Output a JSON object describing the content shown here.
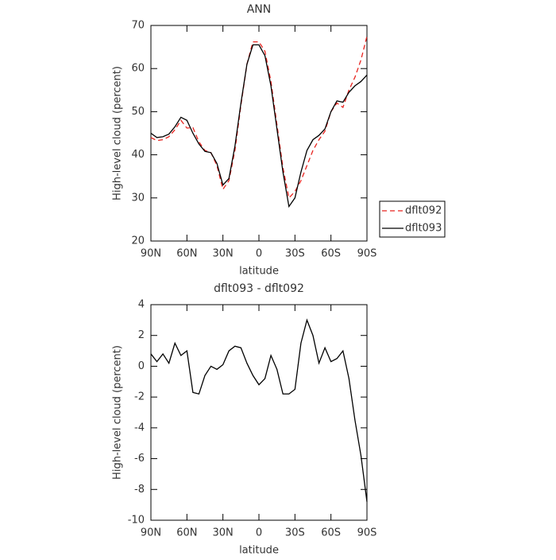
{
  "chart_data": [
    {
      "type": "line",
      "title": "ANN",
      "x_label": "latitude",
      "y_label": "High-level cloud (percent)",
      "x": [
        90,
        85,
        80,
        75,
        70,
        65,
        60,
        55,
        50,
        45,
        40,
        35,
        30,
        25,
        20,
        15,
        10,
        5,
        0,
        -5,
        -10,
        -15,
        -20,
        -25,
        -30,
        -35,
        -40,
        -45,
        -50,
        -55,
        -60,
        -65,
        -70,
        -75,
        -80,
        -85,
        -90
      ],
      "series": [
        {
          "name": "dflt092",
          "color": "#e8231e",
          "linestyle": "dashed",
          "values": [
            44,
            43.3,
            43.5,
            44.2,
            45.8,
            48,
            46.2,
            46.3,
            43,
            41,
            40.5,
            37.5,
            32,
            34,
            41,
            51.5,
            61,
            66.2,
            66.2,
            64,
            57,
            47,
            37,
            30,
            31.5,
            34,
            37.5,
            41,
            43.5,
            45.5,
            50,
            52,
            51,
            55,
            58,
            62,
            67.5
          ]
        },
        {
          "name": "dflt093",
          "color": "#000000",
          "linestyle": "solid",
          "values": [
            45,
            44,
            44.2,
            44.8,
            46.5,
            48.7,
            48,
            45,
            42.5,
            40.8,
            40.5,
            38,
            33,
            34.5,
            42,
            52,
            61,
            65.5,
            65.5,
            63,
            56,
            46,
            36,
            28,
            30,
            36,
            41,
            43.5,
            44.5,
            46,
            50,
            52.5,
            52.2,
            54.5,
            56,
            57,
            58.5
          ]
        }
      ],
      "xlim": [
        90,
        -90
      ],
      "xticks": [
        {
          "value": 90,
          "label": "90N"
        },
        {
          "value": 60,
          "label": "60N"
        },
        {
          "value": 30,
          "label": "30N"
        },
        0,
        {
          "value": -30,
          "label": "30S"
        },
        {
          "value": -60,
          "label": "60S"
        },
        {
          "value": -90,
          "label": "90S"
        }
      ],
      "ylim": [
        20,
        70
      ],
      "yticks": [
        20,
        30,
        40,
        50,
        60,
        70
      ],
      "legend": "right"
    },
    {
      "type": "line",
      "title": "dflt093 - dflt092",
      "x_label": "latitude",
      "y_label": "High-level cloud (percent)",
      "x": [
        90,
        85,
        80,
        75,
        70,
        65,
        60,
        55,
        50,
        45,
        40,
        35,
        30,
        25,
        20,
        15,
        10,
        5,
        0,
        -5,
        -10,
        -15,
        -20,
        -25,
        -30,
        -35,
        -40,
        -45,
        -50,
        -55,
        -60,
        -65,
        -70,
        -75,
        -80,
        -85,
        -90
      ],
      "series": [
        {
          "color": "#000000",
          "linestyle": "solid",
          "values": [
            0.8,
            0.3,
            0.8,
            0.2,
            1.5,
            0.7,
            1.0,
            -1.7,
            -1.8,
            -0.6,
            0,
            -0.2,
            0.1,
            1.0,
            1.3,
            1.2,
            0.2,
            -0.6,
            -1.2,
            -0.8,
            0.7,
            -0.2,
            -1.8,
            -1.8,
            -1.5,
            1.5,
            3.0,
            2.0,
            0.2,
            1.2,
            0.3,
            0.5,
            1.0,
            -0.8,
            -3.5,
            -5.8,
            -8.8
          ]
        }
      ],
      "xlim": [
        90,
        -90
      ],
      "xticks": [
        {
          "value": 90,
          "label": "90N"
        },
        {
          "value": 60,
          "label": "60N"
        },
        {
          "value": 30,
          "label": "30N"
        },
        0,
        {
          "value": -30,
          "label": "30S"
        },
        {
          "value": -60,
          "label": "60S"
        },
        {
          "value": -90,
          "label": "90S"
        }
      ],
      "ylim": [
        -10,
        4
      ],
      "yticks": [
        -10,
        -8,
        -6,
        -4,
        -2,
        0,
        2,
        4
      ]
    }
  ]
}
